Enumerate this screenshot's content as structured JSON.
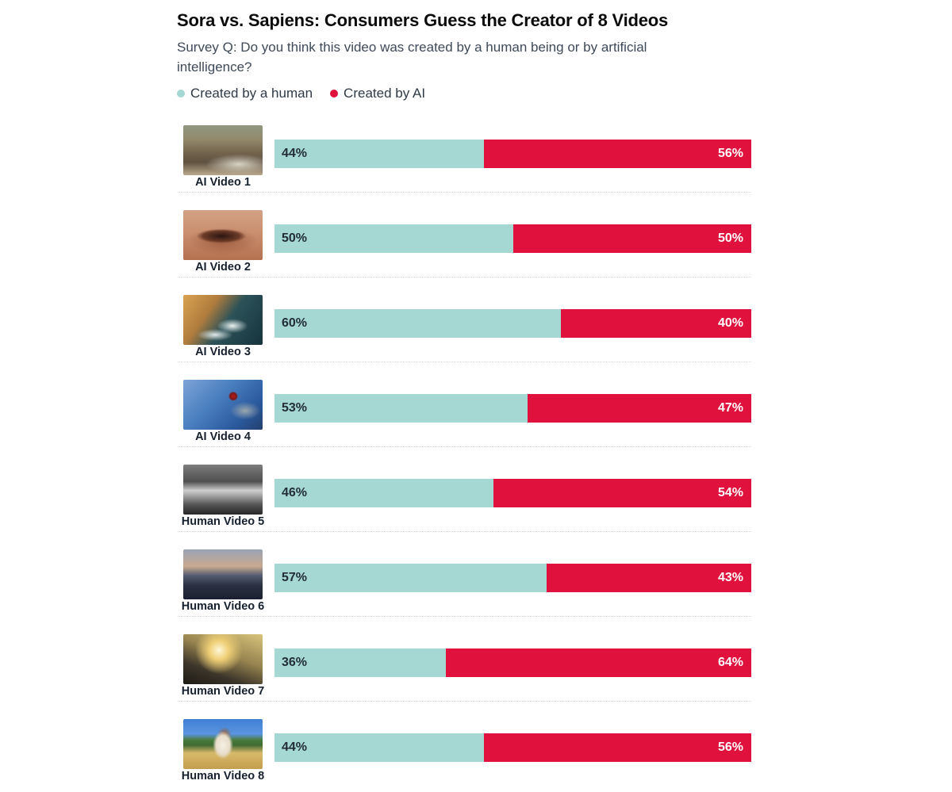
{
  "title": "Sora vs. Sapiens: Consumers Guess the Creator of 8 Videos",
  "subtitle": "Survey Q: Do you think this video was created by a human being or by artificial intelligence?",
  "legend": {
    "human": {
      "label": "Created by a human",
      "color": "#a5d8d2"
    },
    "ai": {
      "label": "Created by AI",
      "color": "#e0113c"
    }
  },
  "chart_data": {
    "type": "bar",
    "orientation": "horizontal",
    "stacked": true,
    "categories": [
      "AI Video 1",
      "AI Video 2",
      "AI Video 3",
      "AI Video 4",
      "Human Video 5",
      "Human Video 6",
      "Human Video 7",
      "Human Video 8"
    ],
    "series": [
      {
        "name": "Created by a human",
        "color": "#a5d8d2",
        "values": [
          44,
          50,
          60,
          53,
          46,
          57,
          36,
          44
        ]
      },
      {
        "name": "Created by AI",
        "color": "#e0113c",
        "values": [
          56,
          50,
          40,
          47,
          54,
          43,
          64,
          56
        ]
      }
    ],
    "value_suffix": "%",
    "xlim": [
      0,
      100
    ],
    "grid": false,
    "legend_position": "top",
    "row_divider_style": "dotted"
  },
  "video_thumbnails": [
    "desert western wagon-train scene",
    "close-up of a human eye",
    "rocky coastline with ocean waves",
    "blue crowned pigeon with red eye",
    "black-and-white bison grazing near a tree",
    "city skyline at dusk",
    "sun rising over a mountain ridge",
    "dog standing in a sunny field"
  ]
}
